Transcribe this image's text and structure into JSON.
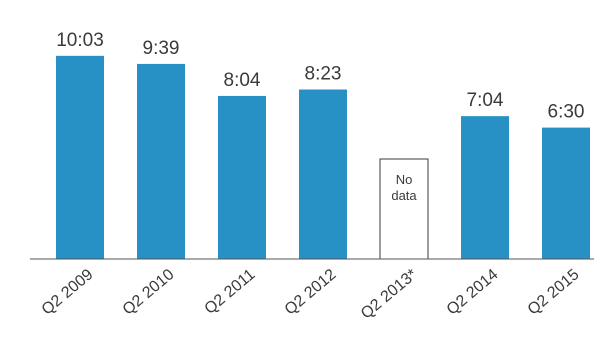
{
  "chart_data": {
    "type": "bar",
    "title": "",
    "xlabel": "",
    "ylabel": "",
    "categories": [
      "Q2 2009",
      "Q2 2010",
      "Q2 2011",
      "Q2 2012",
      "Q2 2013*",
      "Q2 2014",
      "Q2 2015"
    ],
    "values": [
      603,
      579,
      484,
      503,
      null,
      424,
      390
    ],
    "value_labels": [
      "10:03",
      "9:39",
      "8:04",
      "8:23",
      "",
      "7:04",
      "6:30"
    ],
    "no_data_label": "No data",
    "ylim": [
      0,
      650
    ],
    "grid": false,
    "legend": "none",
    "colors": {
      "bar": "#2790c5",
      "no_data_fill": "#ffffff",
      "no_data_stroke": "#3a3a3a",
      "axis": "#555555",
      "text": "#3a3a3a"
    }
  }
}
